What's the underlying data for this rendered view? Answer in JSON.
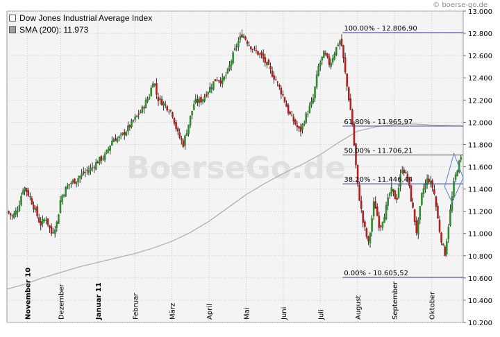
{
  "credit": "© boerse-go.de",
  "watermark": "BoerseGo.de",
  "legend": [
    {
      "label": "Dow Jones Industrial Average Index",
      "color": "#ffffff"
    },
    {
      "label": "SMA (200): 11.973",
      "color": "#a0a0a0"
    }
  ],
  "colors": {
    "up": "#2e8b2e",
    "down": "#b02020",
    "wick": "#000000",
    "sma": "#b0b0b0",
    "fib": "#3333aa",
    "grid": "#c8c8c8"
  },
  "chart_data": {
    "type": "candlestick",
    "ylim": [
      10200,
      13000
    ],
    "y_ticks": [
      10200,
      10400,
      10600,
      10800,
      11000,
      11200,
      11400,
      11600,
      11800,
      12000,
      12200,
      12400,
      12600,
      12800,
      13000
    ],
    "y_tick_labels": [
      "10.200",
      "10.400",
      "10.600",
      "10.800",
      "11.000",
      "11.200",
      "11.400",
      "11.600",
      "11.800",
      "12.000",
      "12.200",
      "12.400",
      "12.600",
      "12.800",
      "13.000"
    ],
    "x_months": [
      {
        "label": "November 10",
        "x": 0.1,
        "bold": true
      },
      {
        "label": "Dezember",
        "x": 1.0,
        "bold": false
      },
      {
        "label": "Januar 11",
        "x": 2.0,
        "bold": true
      },
      {
        "label": "Februar",
        "x": 3.0,
        "bold": false
      },
      {
        "label": "März",
        "x": 4.0,
        "bold": false
      },
      {
        "label": "April",
        "x": 5.0,
        "bold": false
      },
      {
        "label": "Mai",
        "x": 6.0,
        "bold": false
      },
      {
        "label": "Juni",
        "x": 7.0,
        "bold": false
      },
      {
        "label": "Juli",
        "x": 8.0,
        "bold": false
      },
      {
        "label": "August",
        "x": 9.0,
        "bold": false
      },
      {
        "label": "September",
        "x": 10.0,
        "bold": false
      },
      {
        "label": "Oktober",
        "x": 11.0,
        "bold": false
      }
    ],
    "x_range": [
      -0.45,
      11.85
    ],
    "fib_levels": [
      {
        "label": "100.00% - 12.806,90",
        "value": 12806.9
      },
      {
        "label": "61.80% - 11.965,97",
        "value": 11965.97
      },
      {
        "label": "50.00% - 11.706,21",
        "value": 11706.21
      },
      {
        "label": "38.20% - 11.446,44",
        "value": 11446.44
      },
      {
        "label": "0.00% - 10.605,52",
        "value": 10605.52
      }
    ],
    "fib_start_x": 8.6,
    "sma_200": [
      [
        -0.45,
        10500
      ],
      [
        0.0,
        10540
      ],
      [
        0.5,
        10600
      ],
      [
        1.0,
        10650
      ],
      [
        1.5,
        10700
      ],
      [
        2.0,
        10740
      ],
      [
        2.5,
        10780
      ],
      [
        3.0,
        10820
      ],
      [
        3.5,
        10870
      ],
      [
        4.0,
        10930
      ],
      [
        4.5,
        11010
      ],
      [
        5.0,
        11110
      ],
      [
        5.5,
        11230
      ],
      [
        6.0,
        11350
      ],
      [
        6.5,
        11450
      ],
      [
        7.0,
        11540
      ],
      [
        7.5,
        11620
      ],
      [
        8.0,
        11710
      ],
      [
        8.5,
        11820
      ],
      [
        9.0,
        11920
      ],
      [
        9.5,
        11960
      ],
      [
        10.0,
        11980
      ],
      [
        10.5,
        11985
      ],
      [
        11.0,
        11975
      ],
      [
        11.5,
        11970
      ],
      [
        11.85,
        11965
      ]
    ],
    "price_path": [
      [
        -0.45,
        11200
      ],
      [
        -0.3,
        11150
      ],
      [
        -0.15,
        11230
      ],
      [
        0.0,
        11430
      ],
      [
        0.15,
        11340
      ],
      [
        0.3,
        11220
      ],
      [
        0.45,
        11080
      ],
      [
        0.6,
        11140
      ],
      [
        0.75,
        11000
      ],
      [
        0.9,
        11100
      ],
      [
        1.0,
        11320
      ],
      [
        1.2,
        11440
      ],
      [
        1.4,
        11480
      ],
      [
        1.6,
        11540
      ],
      [
        1.8,
        11580
      ],
      [
        2.0,
        11650
      ],
      [
        2.2,
        11700
      ],
      [
        2.4,
        11850
      ],
      [
        2.6,
        11860
      ],
      [
        2.8,
        11940
      ],
      [
        3.0,
        12030
      ],
      [
        3.2,
        12120
      ],
      [
        3.4,
        12250
      ],
      [
        3.5,
        12400
      ],
      [
        3.6,
        12220
      ],
      [
        3.8,
        12160
      ],
      [
        4.0,
        12090
      ],
      [
        4.15,
        11900
      ],
      [
        4.3,
        11800
      ],
      [
        4.45,
        11990
      ],
      [
        4.6,
        12180
      ],
      [
        4.8,
        12200
      ],
      [
        5.0,
        12300
      ],
      [
        5.2,
        12400
      ],
      [
        5.35,
        12370
      ],
      [
        5.5,
        12450
      ],
      [
        5.6,
        12560
      ],
      [
        5.75,
        12700
      ],
      [
        5.9,
        12800
      ],
      [
        6.0,
        12740
      ],
      [
        6.2,
        12650
      ],
      [
        6.4,
        12600
      ],
      [
        6.6,
        12490
      ],
      [
        6.8,
        12380
      ],
      [
        7.0,
        12230
      ],
      [
        7.15,
        12080
      ],
      [
        7.3,
        12000
      ],
      [
        7.45,
        11910
      ],
      [
        7.6,
        12050
      ],
      [
        7.8,
        12200
      ],
      [
        7.95,
        12500
      ],
      [
        8.1,
        12620
      ],
      [
        8.25,
        12520
      ],
      [
        8.4,
        12650
      ],
      [
        8.55,
        12750
      ],
      [
        8.7,
        12360
      ],
      [
        8.85,
        12030
      ],
      [
        9.0,
        11440
      ],
      [
        9.15,
        11100
      ],
      [
        9.3,
        10900
      ],
      [
        9.45,
        11300
      ],
      [
        9.6,
        11050
      ],
      [
        9.75,
        11200
      ],
      [
        9.9,
        11400
      ],
      [
        10.05,
        11300
      ],
      [
        10.2,
        11600
      ],
      [
        10.35,
        11500
      ],
      [
        10.5,
        11200
      ],
      [
        10.6,
        11000
      ],
      [
        10.75,
        11380
      ],
      [
        10.9,
        11500
      ],
      [
        11.05,
        11400
      ],
      [
        11.2,
        11050
      ],
      [
        11.35,
        10800
      ],
      [
        11.5,
        11200
      ],
      [
        11.6,
        11450
      ],
      [
        11.7,
        11600
      ],
      [
        11.8,
        11680
      ]
    ],
    "triangle": [
      [
        11.35,
        11420
      ],
      [
        11.6,
        11720
      ],
      [
        11.85,
        11500
      ],
      [
        11.55,
        11280
      ]
    ]
  }
}
